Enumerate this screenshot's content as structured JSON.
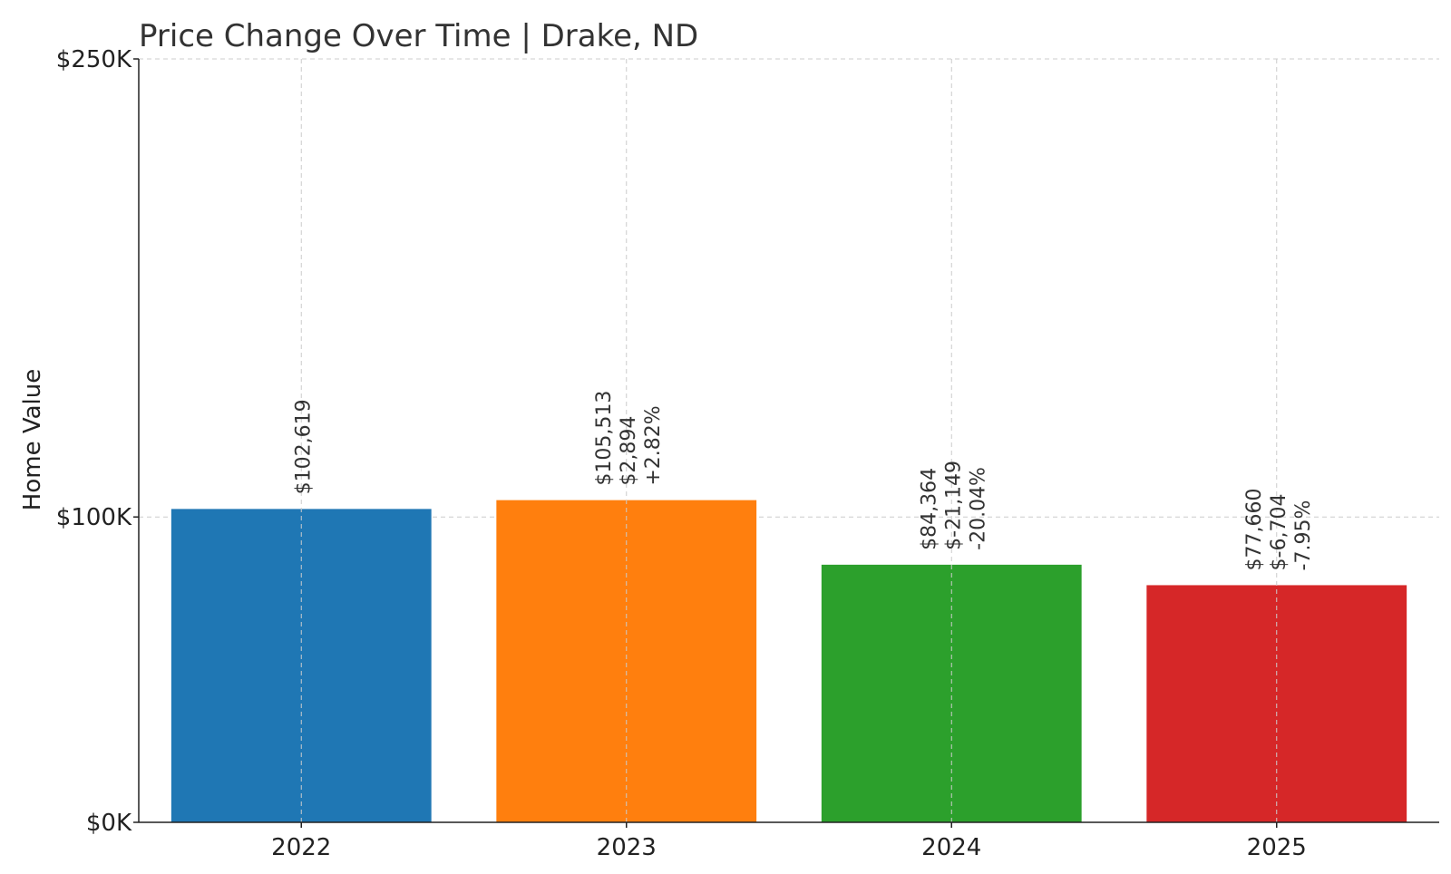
{
  "chart_data": {
    "type": "bar",
    "title": "Price Change Over Time | Drake, ND",
    "xlabel": "",
    "ylabel": "Home Value",
    "categories": [
      "2022",
      "2023",
      "2024",
      "2025"
    ],
    "values": [
      102619,
      105513,
      84364,
      77660
    ],
    "bar_colors": [
      "#1f77b4",
      "#ff7f0e",
      "#2ca02c",
      "#d62728"
    ],
    "data_labels": [
      [
        "$102,619"
      ],
      [
        "$105,513",
        "$2,894",
        "+2.82%"
      ],
      [
        "$84,364",
        "$-21,149",
        "-20.04%"
      ],
      [
        "$77,660",
        "$-6,704",
        "-7.95%"
      ]
    ],
    "y_ticks": [
      0,
      100000,
      250000
    ],
    "y_tick_labels": [
      "$0K",
      "$100K",
      "$250K"
    ],
    "ylim": [
      0,
      250000
    ],
    "grid": true,
    "grid_style": "dashed",
    "legend": "none"
  }
}
